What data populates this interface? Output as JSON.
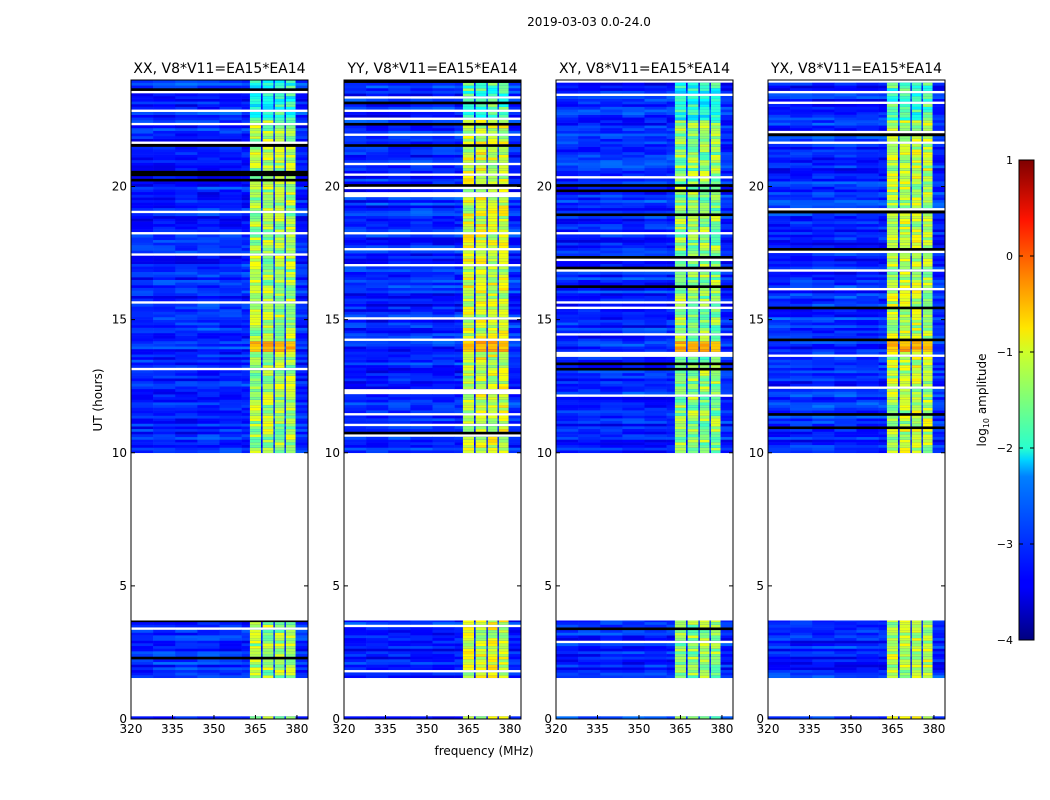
{
  "chart_data": {
    "type": "heatmap",
    "suptitle": "2019-03-03 0.0-24.0",
    "xlabel": "frequency (MHz)",
    "ylabel": "UT (hours)",
    "xlim": [
      320,
      384
    ],
    "ylim": [
      0,
      24
    ],
    "xticks": [
      "320",
      "335",
      "350",
      "365",
      "380"
    ],
    "xtick_values": [
      320,
      335,
      350,
      365,
      380
    ],
    "yticks": [
      "0",
      "5",
      "10",
      "15",
      "20"
    ],
    "ytick_values": [
      0,
      5,
      10,
      15,
      20
    ],
    "panels": [
      {
        "title": "XX, V8*V11=EA15*EA14",
        "band_level": -1.3
      },
      {
        "title": "YY, V8*V11=EA15*EA14",
        "band_level": -1.1
      },
      {
        "title": "XY, V8*V11=EA15*EA14",
        "band_level": -1.4
      },
      {
        "title": "YX, V8*V11=EA15*EA14",
        "band_level": -1.2
      }
    ],
    "data_time_ranges_hours": [
      [
        0,
        0.1
      ],
      [
        1.55,
        3.7
      ],
      [
        10.0,
        24.0
      ]
    ],
    "background_level": -3.2,
    "bright_band_mhz": [
      363,
      380
    ],
    "band_channels_mhz": [
      [
        363,
        367
      ],
      [
        367.6,
        371.5
      ],
      [
        372,
        375.5
      ],
      [
        376,
        379.5
      ]
    ],
    "hot_time_hours": [
      13.7,
      14.1
    ],
    "colorbar": {
      "label": "log10 amplitude",
      "label_main": "log",
      "label_sub": "10",
      "label_rest": " amplitude",
      "range": [
        -4,
        1
      ],
      "ticks": [
        "1",
        "0",
        "−1",
        "−2",
        "−3",
        "−4"
      ],
      "tick_values": [
        1,
        0,
        -1,
        -2,
        -3,
        -4
      ],
      "colormap": "jet"
    }
  }
}
